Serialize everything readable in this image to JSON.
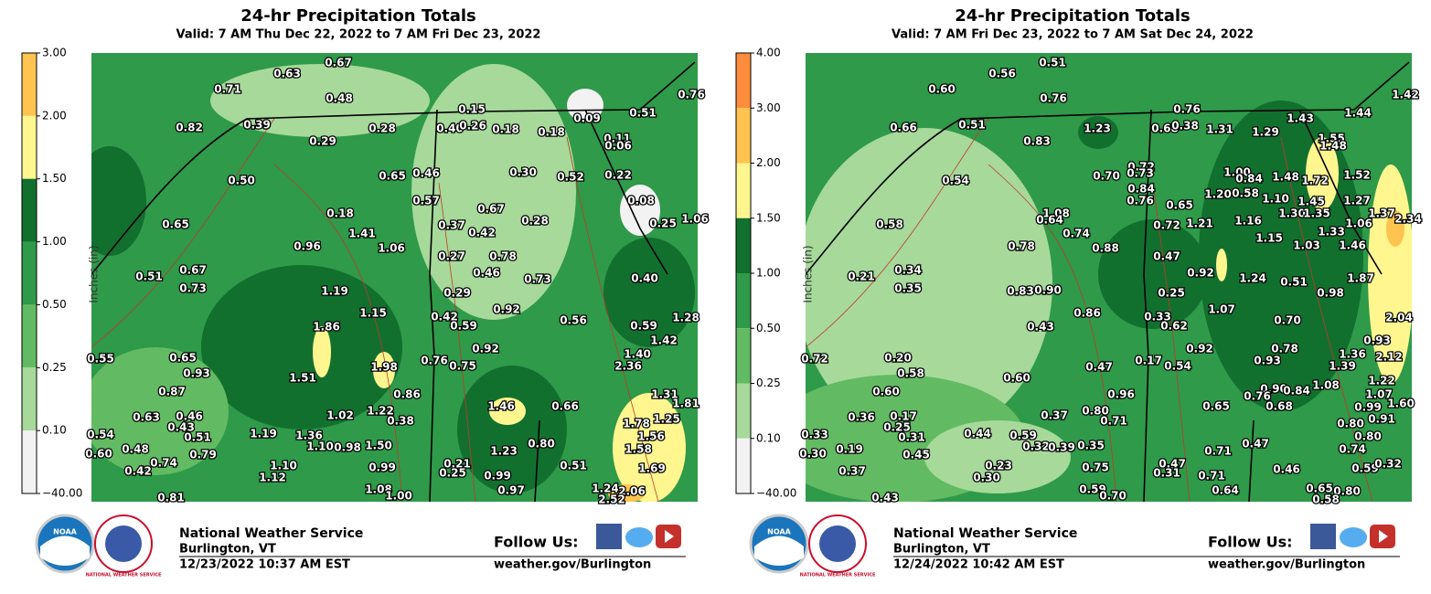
{
  "panels": [
    {
      "title": "24-hr Precipitation Totals",
      "valid": "Valid: 7 AM Thu Dec 22, 2022 to 7 AM Fri Dec 23, 2022",
      "colorbar": {
        "labels": [
          "3.00",
          "2.00",
          "1.50",
          "1.00",
          "0.50",
          "0.25",
          "0.10",
          "−40.00"
        ],
        "colors": [
          "#fec44f",
          "#fff68f",
          "#12702f",
          "#2f9a49",
          "#62bb62",
          "#a6d99a",
          "#f2f2f2"
        ]
      },
      "axis_label": "Inches (in)",
      "stations": [
        "0.67",
        "0.63",
        "0.71",
        "0.48",
        "0.82",
        "0.39",
        "0.28",
        "0.29",
        "0.15",
        "0.40",
        "0.26",
        "0.18",
        "0.18",
        "0.09",
        "0.51",
        "0.76",
        "0.11",
        "0.06",
        "0.50",
        "0.65",
        "0.46",
        "0.57",
        "0.30",
        "0.52",
        "0.22",
        "0.65",
        "0.18",
        "1.41",
        "1.06",
        "0.96",
        "0.37",
        "0.67",
        "0.42",
        "0.28",
        "0.08",
        "1.06",
        "0.25",
        "0.27",
        "0.46",
        "0.78",
        "0.73",
        "0.40",
        "0.67",
        "0.73",
        "0.51",
        "1.19",
        "1.15",
        "0.29",
        "0.92",
        "1.86",
        "0.42",
        "0.59",
        "0.56",
        "0.59",
        "1.28",
        "0.55",
        "0.65",
        "0.93",
        "1.51",
        "1.98",
        "0.76",
        "0.75",
        "0.92",
        "1.42",
        "1.40",
        "2.36",
        "0.87",
        "0.63",
        "0.46",
        "0.43",
        "0.54",
        "0.51",
        "1.19",
        "1.36",
        "1.02",
        "1.22",
        "0.86",
        "0.38",
        "1.46",
        "0.66",
        "1.31",
        "1.81",
        "1.25",
        "1.78",
        "1.56",
        "0.60",
        "0.48",
        "0.74",
        "0.79",
        "0.42",
        "1.10",
        "1.12",
        "1.10",
        "0.98",
        "1.50",
        "0.99",
        "0.21",
        "0.25",
        "1.23",
        "0.80",
        "0.99",
        "0.51",
        "1.58",
        "1.69",
        "0.97",
        "1.24",
        "2.06",
        "1.08",
        "1.00",
        "0.81",
        "2.52"
      ],
      "footer": {
        "logo_noaa": "NOAA",
        "logo_nws": "NATIONAL WEATHER SERVICE",
        "org": "National Weather Service",
        "office": "Burlington, VT",
        "timestamp": "12/23/2022 10:37 AM EST",
        "follow": "Follow Us:",
        "url": "weather.gov/Burlington"
      }
    },
    {
      "title": "24-hr Precipitation Totals",
      "valid": "Valid: 7 AM Fri Dec 23, 2022 to 7 AM Sat Dec 24, 2022",
      "colorbar": {
        "labels": [
          "4.00",
          "3.00",
          "2.00",
          "1.50",
          "1.00",
          "0.50",
          "0.25",
          "0.10",
          "−40.00"
        ],
        "colors": [
          "#fd8d3c",
          "#fec44f",
          "#fff68f",
          "#12702f",
          "#2f9a49",
          "#62bb62",
          "#a6d99a",
          "#f2f2f2"
        ]
      },
      "axis_label": "Inches (in)",
      "stations": [
        "0.51",
        "0.56",
        "0.60",
        "0.76",
        "0.66",
        "0.51",
        "0.83",
        "1.23",
        "0.76",
        "0.68",
        "0.38",
        "1.31",
        "1.29",
        "1.43",
        "1.44",
        "1.42",
        "1.55",
        "1.48",
        "0.54",
        "0.70",
        "0.72",
        "0.73",
        "0.84",
        "0.76",
        "1.00",
        "0.84",
        "1.48",
        "1.72",
        "1.52",
        "0.58",
        "1.08",
        "0.64",
        "0.74",
        "0.88",
        "0.65",
        "1.20",
        "0.58",
        "1.10",
        "1.45",
        "1.27",
        "1.30",
        "1.35",
        "1.37",
        "2.34",
        "0.72",
        "1.21",
        "1.16",
        "1.06",
        "0.78",
        "1.33",
        "1.46",
        "0.47",
        "1.15",
        "1.03",
        "1.87",
        "0.34",
        "0.35",
        "0.21",
        "0.83",
        "0.90",
        "0.92",
        "1.24",
        "0.51",
        "0.98",
        "0.25",
        "1.07",
        "0.86",
        "0.43",
        "0.33",
        "0.62",
        "0.70",
        "2.04",
        "0.93",
        "0.72",
        "0.20",
        "0.58",
        "0.47",
        "0.17",
        "0.54",
        "0.92",
        "0.78",
        "0.93",
        "1.36",
        "2.12",
        "1.39",
        "1.22",
        "1.08",
        "0.60",
        "0.60",
        "0.96",
        "0.90",
        "0.76",
        "0.84",
        "0.68",
        "1.07",
        "1.60",
        "0.99",
        "0.91",
        "0.36",
        "0.17",
        "0.25",
        "0.33",
        "0.31",
        "0.44",
        "0.59",
        "0.37",
        "0.80",
        "0.71",
        "0.65",
        "0.80",
        "0.80",
        "0.30",
        "0.19",
        "0.37",
        "0.45",
        "0.23",
        "0.30",
        "0.32",
        "0.39",
        "0.35",
        "0.75",
        "0.47",
        "0.31",
        "0.71",
        "0.47",
        "0.71",
        "0.46",
        "0.74",
        "0.59",
        "0.32",
        "0.64",
        "0.65",
        "0.80",
        "0.59",
        "0.70",
        "0.43",
        "0.58"
      ],
      "footer": {
        "logo_noaa": "NOAA",
        "logo_nws": "NATIONAL WEATHER SERVICE",
        "org": "National Weather Service",
        "office": "Burlington, VT",
        "timestamp": "12/24/2022 10:42 AM EST",
        "follow": "Follow Us:",
        "url": "weather.gov/Burlington"
      }
    }
  ]
}
